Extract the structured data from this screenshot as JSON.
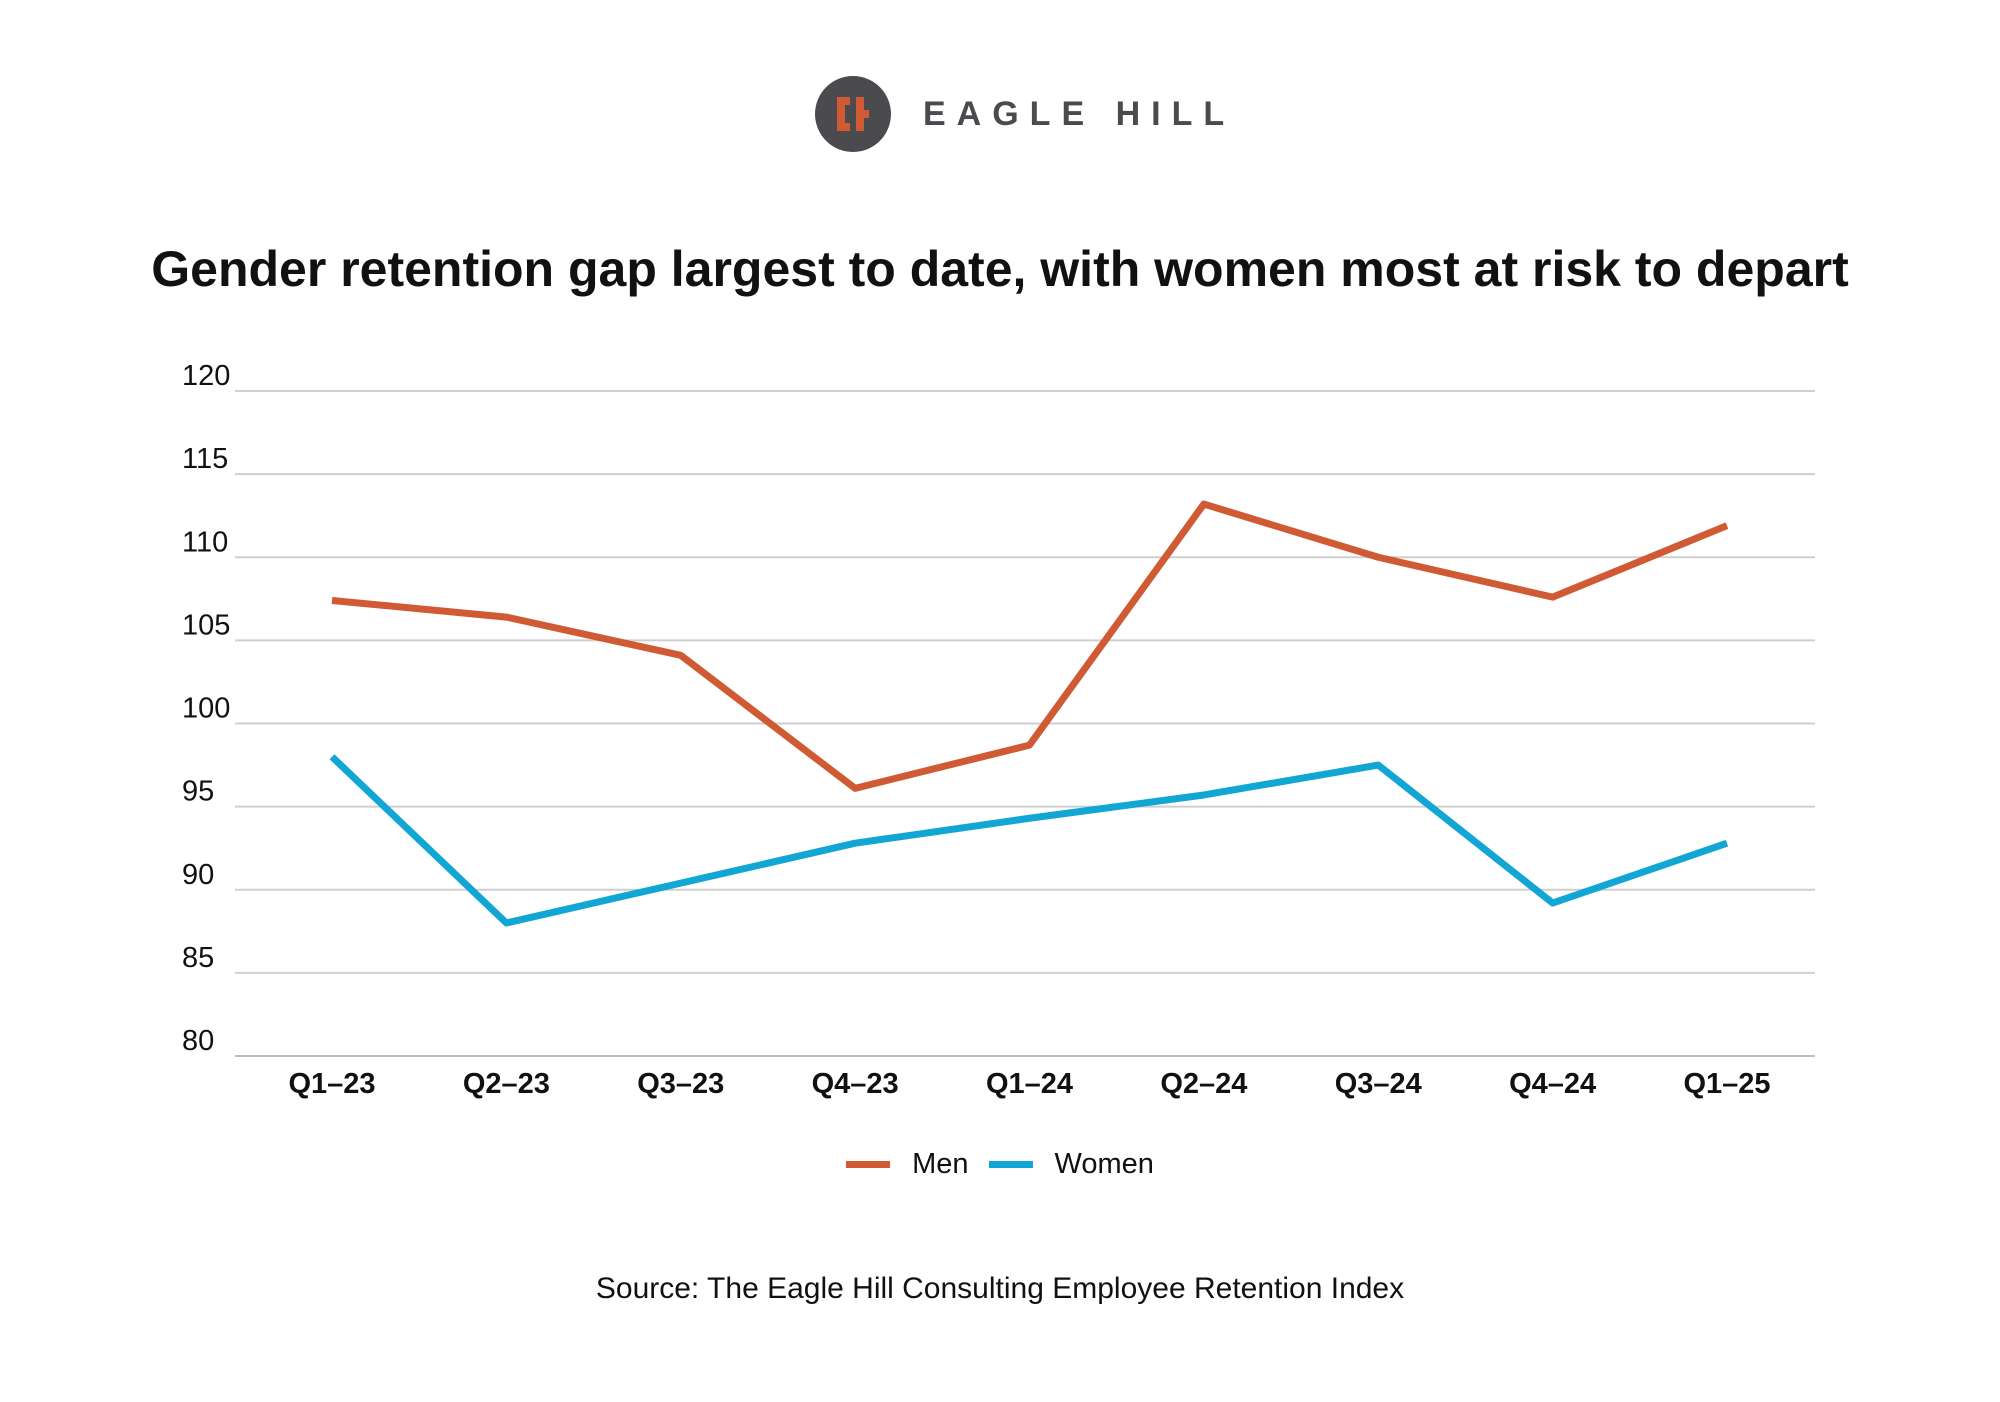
{
  "header": {
    "brand_text": "EAGLE HILL",
    "brand_color": "#4a4a4f",
    "accent_color": "#cf5a33"
  },
  "chart_data": {
    "type": "line",
    "title": "Gender retention gap largest to date, with women most at risk to depart",
    "categories": [
      "Q1-23",
      "Q2-23",
      "Q3-23",
      "Q4-23",
      "Q1-24",
      "Q2-24",
      "Q3-24",
      "Q4-24",
      "Q1-25"
    ],
    "series": [
      {
        "name": "Men",
        "color": "#cf5a33",
        "values": [
          107.4,
          106.4,
          104.1,
          96.1,
          98.7,
          113.2,
          110.0,
          107.6,
          111.9
        ]
      },
      {
        "name": "Women",
        "color": "#11a6d4",
        "values": [
          98.0,
          88.0,
          90.4,
          92.8,
          94.3,
          95.7,
          97.5,
          89.2,
          92.8
        ]
      }
    ],
    "ylim": [
      80,
      120
    ],
    "yticks": [
      80,
      85,
      90,
      95,
      100,
      105,
      110,
      115,
      120
    ],
    "xlabel": "",
    "ylabel": "",
    "grid": true,
    "legend_position": "bottom-center"
  },
  "footer": {
    "source": "Source: The Eagle Hill Consulting Employee Retention Index"
  }
}
